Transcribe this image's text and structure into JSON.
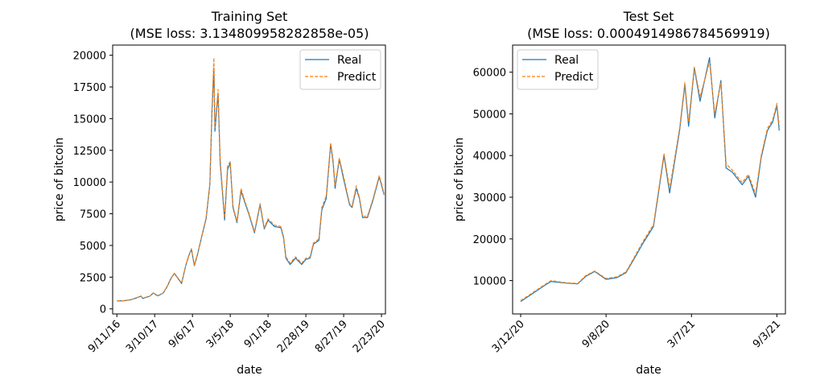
{
  "chart_data": [
    {
      "type": "line",
      "title": "Training Set",
      "subtitle": "(MSE loss: 3.134809958282858e-05)",
      "xlabel": "date",
      "ylabel": "price of bitcoin",
      "xlim": [
        "2016-08-22",
        "2020-03-13"
      ],
      "ylim": [
        -400,
        20800
      ],
      "yticks": [
        0,
        2500,
        5000,
        7500,
        10000,
        12500,
        15000,
        17500,
        20000
      ],
      "ytick_labels": [
        "0",
        "2500",
        "5000",
        "7500",
        "10000",
        "12500",
        "15000",
        "17500",
        "20000"
      ],
      "xticks": [
        "2016-09-11",
        "2017-03-10",
        "2017-09-06",
        "2018-03-05",
        "2018-09-01",
        "2019-02-28",
        "2019-08-27",
        "2020-02-23"
      ],
      "xtick_labels": [
        "9/11/16",
        "3/10/17",
        "9/6/17",
        "3/5/18",
        "9/1/18",
        "2/28/19",
        "8/27/19",
        "2/23/20"
      ],
      "legend": {
        "position": "top-right",
        "entries": [
          "Real",
          "Predict"
        ]
      },
      "grid": false,
      "series": [
        {
          "name": "Real",
          "color": "#1f77b4",
          "style": "solid",
          "x": [
            "2016-09-11",
            "2016-10-15",
            "2016-11-20",
            "2016-12-20",
            "2017-01-04",
            "2017-01-12",
            "2017-02-15",
            "2017-03-03",
            "2017-03-25",
            "2017-04-20",
            "2017-05-10",
            "2017-05-25",
            "2017-06-12",
            "2017-07-16",
            "2017-08-05",
            "2017-08-20",
            "2017-09-01",
            "2017-09-15",
            "2017-10-01",
            "2017-10-20",
            "2017-11-10",
            "2017-11-28",
            "2017-12-08",
            "2017-12-17",
            "2017-12-22",
            "2018-01-06",
            "2018-01-16",
            "2018-02-06",
            "2018-02-20",
            "2018-03-05",
            "2018-03-18",
            "2018-04-06",
            "2018-04-25",
            "2018-05-15",
            "2018-06-01",
            "2018-06-28",
            "2018-07-25",
            "2018-08-14",
            "2018-09-01",
            "2018-10-01",
            "2018-11-01",
            "2018-11-14",
            "2018-11-25",
            "2018-12-15",
            "2019-01-10",
            "2019-02-08",
            "2019-02-28",
            "2019-03-20",
            "2019-04-05",
            "2019-05-01",
            "2019-05-15",
            "2019-06-05",
            "2019-06-26",
            "2019-07-08",
            "2019-07-17",
            "2019-08-06",
            "2019-08-27",
            "2019-09-24",
            "2019-10-06",
            "2019-10-26",
            "2019-11-10",
            "2019-11-25",
            "2019-12-18",
            "2020-01-14",
            "2020-02-12",
            "2020-02-23",
            "2020-03-06"
          ],
          "y": [
            620,
            640,
            730,
            900,
            1000,
            820,
            1000,
            1250,
            1020,
            1250,
            1800,
            2350,
            2800,
            2000,
            3400,
            4200,
            4700,
            3400,
            4350,
            5700,
            7100,
            9800,
            15500,
            19000,
            14000,
            17000,
            11500,
            7000,
            11000,
            11500,
            8000,
            6800,
            9300,
            8300,
            7500,
            6000,
            8200,
            6300,
            7000,
            6500,
            6400,
            5600,
            4000,
            3500,
            4000,
            3500,
            3900,
            4000,
            5100,
            5400,
            7800,
            8700,
            13000,
            11500,
            9500,
            11800,
            10200,
            8200,
            8000,
            9500,
            8700,
            7200,
            7200,
            8600,
            10400,
            9800,
            9000
          ]
        },
        {
          "name": "Predict",
          "color": "#ff7f0e",
          "style": "dashed",
          "x": [
            "2016-09-11",
            "2016-10-15",
            "2016-11-20",
            "2016-12-20",
            "2017-01-04",
            "2017-01-12",
            "2017-02-15",
            "2017-03-03",
            "2017-03-25",
            "2017-04-20",
            "2017-05-10",
            "2017-05-25",
            "2017-06-12",
            "2017-07-16",
            "2017-08-05",
            "2017-08-20",
            "2017-09-01",
            "2017-09-15",
            "2017-10-01",
            "2017-10-20",
            "2017-11-10",
            "2017-11-28",
            "2017-12-08",
            "2017-12-17",
            "2017-12-22",
            "2018-01-06",
            "2018-01-16",
            "2018-02-06",
            "2018-02-20",
            "2018-03-05",
            "2018-03-18",
            "2018-04-06",
            "2018-04-25",
            "2018-05-15",
            "2018-06-01",
            "2018-06-28",
            "2018-07-25",
            "2018-08-14",
            "2018-09-01",
            "2018-10-01",
            "2018-11-01",
            "2018-11-14",
            "2018-11-25",
            "2018-12-15",
            "2019-01-10",
            "2019-02-08",
            "2019-02-28",
            "2019-03-20",
            "2019-04-05",
            "2019-05-01",
            "2019-05-15",
            "2019-06-05",
            "2019-06-26",
            "2019-07-08",
            "2019-07-17",
            "2019-08-06",
            "2019-08-27",
            "2019-09-24",
            "2019-10-06",
            "2019-10-26",
            "2019-11-10",
            "2019-11-25",
            "2019-12-18",
            "2020-01-14",
            "2020-02-12",
            "2020-02-23",
            "2020-03-06"
          ],
          "y": [
            630,
            650,
            740,
            920,
            1020,
            850,
            1010,
            1260,
            1050,
            1270,
            1830,
            2380,
            2820,
            2050,
            3420,
            4250,
            4750,
            3450,
            4400,
            5750,
            7200,
            9900,
            15800,
            19800,
            14300,
            17300,
            11800,
            7200,
            11300,
            11600,
            8100,
            6900,
            9500,
            8400,
            7600,
            6100,
            8300,
            6400,
            7100,
            6600,
            6500,
            5700,
            4100,
            3600,
            4100,
            3600,
            4000,
            4100,
            5200,
            5500,
            8000,
            8900,
            13100,
            11700,
            9700,
            11900,
            10400,
            8300,
            8100,
            9700,
            8800,
            7300,
            7300,
            8700,
            10500,
            9900,
            9100
          ]
        }
      ]
    },
    {
      "type": "line",
      "title": "Test Set",
      "subtitle": "(MSE loss: 0.0004914986784569919)",
      "xlabel": "date",
      "ylabel": "price of bitcoin",
      "xlim": [
        "2020-02-24",
        "2021-09-21"
      ],
      "ylim": [
        2000,
        66500
      ],
      "yticks": [
        10000,
        20000,
        30000,
        40000,
        50000,
        60000
      ],
      "ytick_labels": [
        "10000",
        "20000",
        "30000",
        "40000",
        "50000",
        "60000"
      ],
      "xticks": [
        "2020-03-12",
        "2020-09-08",
        "2021-03-07",
        "2021-09-03"
      ],
      "xtick_labels": [
        "3/12/20",
        "9/8/20",
        "3/7/21",
        "9/3/21"
      ],
      "legend": {
        "position": "top-left",
        "entries": [
          "Real",
          "Predict"
        ]
      },
      "grid": false,
      "series": [
        {
          "name": "Real",
          "color": "#1f77b4",
          "style": "solid",
          "x": [
            "2020-03-12",
            "2020-04-01",
            "2020-05-01",
            "2020-05-15",
            "2020-06-15",
            "2020-07-10",
            "2020-07-27",
            "2020-08-15",
            "2020-09-08",
            "2020-10-01",
            "2020-10-20",
            "2020-11-05",
            "2020-11-25",
            "2020-12-17",
            "2021-01-08",
            "2021-01-20",
            "2021-02-10",
            "2021-02-21",
            "2021-03-01",
            "2021-03-13",
            "2021-03-25",
            "2021-04-14",
            "2021-04-25",
            "2021-05-08",
            "2021-05-19",
            "2021-06-01",
            "2021-06-22",
            "2021-07-05",
            "2021-07-20",
            "2021-08-01",
            "2021-08-14",
            "2021-08-25",
            "2021-09-03",
            "2021-09-08"
          ],
          "y": [
            5000,
            6500,
            8800,
            9800,
            9400,
            9200,
            11000,
            12200,
            10300,
            10700,
            11900,
            15000,
            19000,
            23000,
            40000,
            31000,
            46000,
            57000,
            47000,
            61000,
            53000,
            63500,
            49000,
            58000,
            37000,
            36000,
            33000,
            35000,
            30000,
            39500,
            46000,
            48000,
            52000,
            46000
          ]
        },
        {
          "name": "Predict",
          "color": "#ff7f0e",
          "style": "dashed",
          "x": [
            "2020-03-12",
            "2020-04-01",
            "2020-05-01",
            "2020-05-15",
            "2020-06-15",
            "2020-07-10",
            "2020-07-27",
            "2020-08-15",
            "2020-09-08",
            "2020-10-01",
            "2020-10-20",
            "2020-11-05",
            "2020-11-25",
            "2020-12-17",
            "2021-01-08",
            "2021-01-20",
            "2021-02-10",
            "2021-02-21",
            "2021-03-01",
            "2021-03-13",
            "2021-03-25",
            "2021-04-14",
            "2021-04-25",
            "2021-05-08",
            "2021-05-19",
            "2021-06-01",
            "2021-06-22",
            "2021-07-05",
            "2021-07-20",
            "2021-08-01",
            "2021-08-14",
            "2021-08-25",
            "2021-09-03",
            "2021-09-08"
          ],
          "y": [
            5200,
            6700,
            9000,
            10000,
            9500,
            9300,
            11200,
            12300,
            10500,
            10900,
            12100,
            15300,
            19400,
            23500,
            40500,
            32000,
            46500,
            57500,
            48000,
            61200,
            54000,
            62500,
            50000,
            57500,
            38000,
            36500,
            33500,
            35500,
            30800,
            40000,
            46500,
            48500,
            52500,
            47000
          ]
        }
      ]
    }
  ]
}
